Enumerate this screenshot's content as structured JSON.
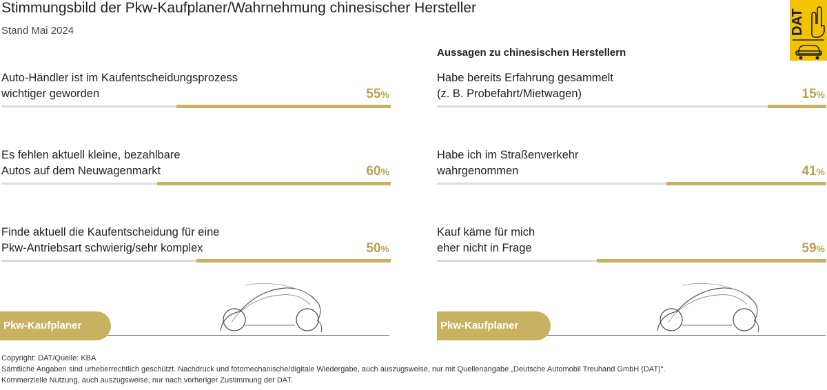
{
  "title": "Stimmungsbild der Pkw-Kaufplaner/Wahrnehmung chinesischer Hersteller",
  "subtitle": "Stand Mai 2024",
  "logo": {
    "text": "DAT",
    "color": "#f2c300"
  },
  "right_heading": "Aussagen zu chinesischen Herstellern",
  "colors": {
    "accent": "#c8b261",
    "value_text": "#b9a24f",
    "track": "#dcdcdc"
  },
  "chart_data": [
    {
      "type": "bar",
      "orientation": "horizontal",
      "categories": [
        "Auto-Händler ist im Kaufentscheidungsprozess wichtiger geworden",
        "Es fehlen aktuell kleine, bezahlbare Autos auf dem Neuwagenmarkt",
        "Finde aktuell die Kaufentscheidung für eine Pkw-Antriebsart schwierig/sehr komplex"
      ],
      "values": [
        55,
        60,
        50
      ],
      "unit": "%",
      "xlim": [
        0,
        100
      ]
    },
    {
      "type": "bar",
      "orientation": "horizontal",
      "title": "Aussagen zu chinesischen Herstellern",
      "categories": [
        "Habe bereits Erfahrung gesammelt (z. B. Probefahrt/Mietwagen)",
        "Habe ich im Straßenverkehr wahrgenommen",
        "Kauf käme für mich eher nicht in Frage"
      ],
      "values": [
        15,
        41,
        59
      ],
      "unit": "%",
      "xlim": [
        0,
        100
      ]
    }
  ],
  "left_items": [
    {
      "line1": "Auto-Händler ist im Kaufentscheidungsprozess",
      "line2": "wichtiger geworden",
      "value": 55,
      "value_text": "55",
      "unit": "%"
    },
    {
      "line1": "Es fehlen aktuell kleine, bezahlbare",
      "line2": "Autos auf dem Neuwagenmarkt",
      "value": 60,
      "value_text": "60",
      "unit": "%"
    },
    {
      "line1": "Finde aktuell die Kaufentscheidung für eine",
      "line2": "Pkw-Antriebsart schwierig/sehr komplex",
      "value": 50,
      "value_text": "50",
      "unit": "%"
    }
  ],
  "right_items": [
    {
      "line1": "Habe bereits Erfahrung gesammelt",
      "line2": "(z. B. Probefahrt/Mietwagen)",
      "value": 15,
      "value_text": "15",
      "unit": "%"
    },
    {
      "line1": "Habe ich im Straßenverkehr",
      "line2": "wahrgenommen",
      "value": 41,
      "value_text": "41",
      "unit": "%"
    },
    {
      "line1": "Kauf käme für mich",
      "line2": "eher nicht in Frage",
      "value": 59,
      "value_text": "59",
      "unit": "%"
    }
  ],
  "badge_label": "Pkw-Kaufplaner",
  "footer": {
    "line1": "Copyright: DAT/Quelle: KBA",
    "line2": "Sämtliche Angaben sind urheberrechtlich geschützt. Nachdruck und fotomechanische/digitale Wiedergabe, auch auszugsweise, nur mit Quellenangabe „Deutsche Automobil Treuhand GmbH (DAT)“.",
    "line3": "Kommerzielle Nutzung, auch auszugsweise, nur nach vorheriger Zustimmung der DAT."
  }
}
